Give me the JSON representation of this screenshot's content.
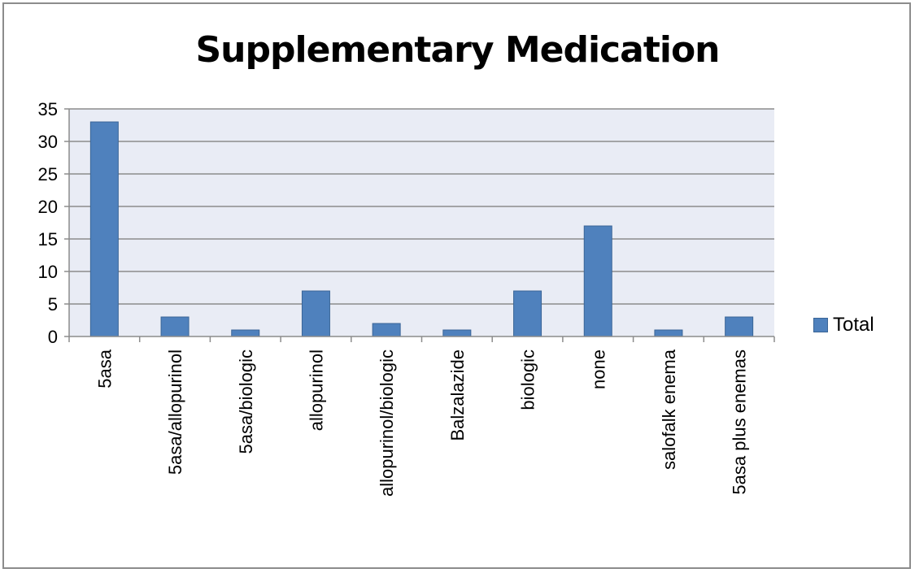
{
  "chart_data": {
    "type": "bar",
    "title": "Supplementary Medication",
    "xlabel": "",
    "ylabel": "",
    "categories": [
      "5asa",
      "5asa/allopurinol",
      "5asa/biologic",
      "allopurinol",
      "allopurinol/biologic",
      "Balzalazide",
      "biologic",
      "none",
      "salofalk enema",
      "5asa plus enemas"
    ],
    "series": [
      {
        "name": "Total",
        "values": [
          33,
          3,
          1,
          7,
          2,
          1,
          7,
          17,
          1,
          3
        ]
      }
    ],
    "ylim": [
      0,
      35
    ],
    "yticks": [
      "0",
      "5",
      "10",
      "15",
      "20",
      "25",
      "30",
      "35"
    ],
    "grid": true,
    "legend_position": "right",
    "colors": {
      "bar": "#4f81bd",
      "bar_border": "#3a6597",
      "plot_bg": "#e9ecf5",
      "grid": "#8c8c8c"
    }
  }
}
